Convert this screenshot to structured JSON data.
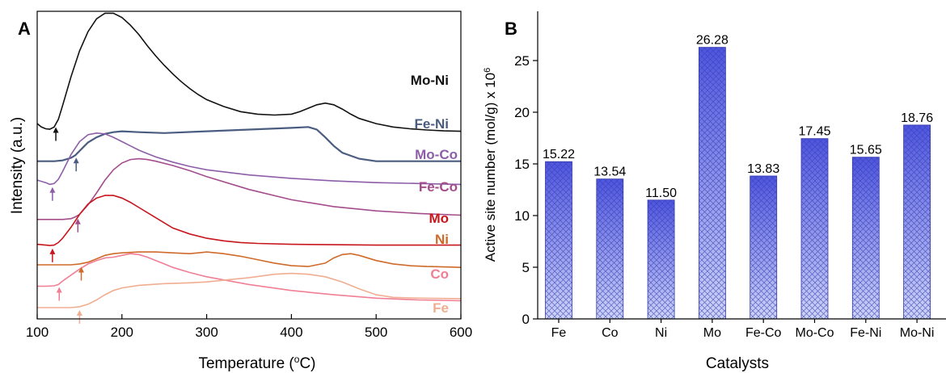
{
  "panels": {
    "a": "A",
    "b": "B"
  },
  "chart_data": [
    {
      "type": "line",
      "panel": "A",
      "xlabel": "Temperature (°C)",
      "xlabel_parts": {
        "main": "Temperature (",
        "sup": "o",
        "tail": "C)"
      },
      "ylabel": "Intensity (a.u.)",
      "xlim": [
        100,
        600
      ],
      "xticks": [
        100,
        200,
        300,
        400,
        500,
        600
      ],
      "yticks_shown": false,
      "series": [
        {
          "name": "Mo-Ni",
          "color": "#111111",
          "arrow_x": 122,
          "x": [
            100,
            105,
            110,
            115,
            120,
            125,
            130,
            140,
            150,
            160,
            170,
            180,
            190,
            200,
            210,
            220,
            230,
            240,
            250,
            260,
            270,
            280,
            290,
            300,
            320,
            340,
            360,
            380,
            400,
            410,
            420,
            430,
            440,
            450,
            460,
            470,
            480,
            500,
            520,
            540,
            560,
            580,
            600
          ],
          "y": [
            4.3,
            4.22,
            4.18,
            4.17,
            4.22,
            4.4,
            4.72,
            5.4,
            6.0,
            6.45,
            6.75,
            6.88,
            6.88,
            6.78,
            6.6,
            6.38,
            6.12,
            5.88,
            5.66,
            5.46,
            5.28,
            5.12,
            4.98,
            4.86,
            4.7,
            4.58,
            4.52,
            4.5,
            4.52,
            4.58,
            4.66,
            4.74,
            4.78,
            4.74,
            4.64,
            4.52,
            4.42,
            4.3,
            4.22,
            4.18,
            4.15,
            4.13,
            4.12
          ]
        },
        {
          "name": "Fe-Ni",
          "color": "#4a5d80",
          "arrow_x": 146,
          "x": [
            100,
            110,
            120,
            130,
            140,
            145,
            150,
            155,
            160,
            170,
            180,
            190,
            200,
            220,
            250,
            300,
            350,
            400,
            420,
            430,
            440,
            450,
            460,
            480,
            500,
            550,
            600
          ],
          "y": [
            3.42,
            3.42,
            3.42,
            3.44,
            3.5,
            3.56,
            3.66,
            3.76,
            3.86,
            3.98,
            4.06,
            4.1,
            4.12,
            4.1,
            4.08,
            4.12,
            4.16,
            4.2,
            4.22,
            4.16,
            3.98,
            3.78,
            3.62,
            3.48,
            3.42,
            3.42,
            3.42
          ]
        },
        {
          "name": "Mo-Co",
          "color": "#8d5ea8",
          "arrow_x": 118,
          "x": [
            100,
            110,
            115,
            120,
            125,
            130,
            140,
            150,
            160,
            170,
            180,
            190,
            200,
            210,
            220,
            230,
            240,
            260,
            280,
            300,
            350,
            400,
            450,
            500,
            550,
            600
          ],
          "y": [
            2.98,
            2.92,
            2.88,
            2.9,
            3.0,
            3.18,
            3.58,
            3.88,
            4.04,
            4.08,
            4.06,
            3.98,
            3.88,
            3.78,
            3.68,
            3.6,
            3.52,
            3.4,
            3.3,
            3.22,
            3.1,
            3.02,
            2.96,
            2.92,
            2.9,
            2.88
          ]
        },
        {
          "name": "Fe-Co",
          "color": "#a34d8c",
          "arrow_x": 148,
          "x": [
            100,
            110,
            120,
            130,
            140,
            145,
            150,
            160,
            170,
            180,
            190,
            200,
            210,
            220,
            230,
            240,
            260,
            280,
            300,
            350,
            400,
            450,
            500,
            550,
            600
          ],
          "y": [
            2.06,
            2.06,
            2.06,
            2.06,
            2.08,
            2.12,
            2.18,
            2.4,
            2.68,
            2.98,
            3.22,
            3.38,
            3.46,
            3.48,
            3.46,
            3.42,
            3.32,
            3.2,
            3.06,
            2.76,
            2.52,
            2.36,
            2.26,
            2.2,
            2.16
          ]
        },
        {
          "name": "Mo",
          "color": "#c8161d",
          "arrow_x": 118,
          "x": [
            100,
            110,
            115,
            120,
            125,
            130,
            140,
            150,
            160,
            170,
            180,
            190,
            200,
            210,
            220,
            230,
            240,
            250,
            260,
            280,
            300,
            320,
            340,
            360,
            400,
            450,
            500,
            550,
            600
          ],
          "y": [
            1.48,
            1.46,
            1.45,
            1.46,
            1.52,
            1.62,
            1.88,
            2.18,
            2.42,
            2.56,
            2.62,
            2.62,
            2.56,
            2.46,
            2.34,
            2.22,
            2.1,
            1.98,
            1.86,
            1.72,
            1.62,
            1.56,
            1.52,
            1.5,
            1.48,
            1.47,
            1.46,
            1.46,
            1.46
          ]
        },
        {
          "name": "Ni",
          "color": "#d06a2a",
          "arrow_x": 152,
          "x": [
            100,
            120,
            140,
            150,
            160,
            170,
            180,
            190,
            200,
            220,
            240,
            260,
            280,
            290,
            300,
            320,
            340,
            360,
            380,
            400,
            420,
            440,
            450,
            460,
            470,
            480,
            500,
            520,
            540,
            560,
            580,
            600
          ],
          "y": [
            1.0,
            1.0,
            1.0,
            1.02,
            1.06,
            1.14,
            1.22,
            1.26,
            1.28,
            1.3,
            1.3,
            1.28,
            1.26,
            1.28,
            1.3,
            1.26,
            1.2,
            1.12,
            1.04,
            0.98,
            0.96,
            1.04,
            1.16,
            1.24,
            1.26,
            1.22,
            1.1,
            1.02,
            0.98,
            0.96,
            0.95,
            0.94
          ]
        },
        {
          "name": "Co",
          "color": "#f07f95",
          "arrow_x": 126,
          "x": [
            100,
            110,
            120,
            125,
            130,
            140,
            150,
            160,
            170,
            180,
            190,
            200,
            210,
            220,
            230,
            240,
            250,
            260,
            280,
            300,
            350,
            400,
            450,
            500,
            550,
            600
          ],
          "y": [
            0.5,
            0.5,
            0.51,
            0.54,
            0.62,
            0.76,
            0.9,
            1.02,
            1.1,
            1.16,
            1.18,
            1.22,
            1.26,
            1.24,
            1.18,
            1.1,
            1.02,
            0.94,
            0.82,
            0.72,
            0.54,
            0.4,
            0.3,
            0.22,
            0.18,
            0.16
          ]
        },
        {
          "name": "Fe",
          "color": "#f1ad91",
          "arrow_x": 150,
          "x": [
            100,
            120,
            140,
            150,
            160,
            170,
            180,
            190,
            200,
            220,
            250,
            280,
            300,
            320,
            350,
            380,
            400,
            420,
            440,
            460,
            480,
            500,
            520,
            550,
            600
          ],
          "y": [
            0.0,
            0.0,
            0.0,
            0.02,
            0.08,
            0.18,
            0.3,
            0.4,
            0.46,
            0.52,
            0.56,
            0.58,
            0.6,
            0.64,
            0.7,
            0.78,
            0.8,
            0.78,
            0.72,
            0.6,
            0.44,
            0.3,
            0.24,
            0.22,
            0.21
          ]
        }
      ]
    },
    {
      "type": "bar",
      "panel": "B",
      "xlabel": "Catalysts",
      "ylabel": "Active site number (mol/g) x 10",
      "ylabel_sup": "6",
      "ylim": [
        0,
        29
      ],
      "yticks": [
        0,
        5,
        10,
        15,
        20,
        25
      ],
      "categories": [
        "Fe",
        "Co",
        "Ni",
        "Mo",
        "Fe-Co",
        "Mo-Co",
        "Fe-Ni",
        "Mo-Ni"
      ],
      "values": [
        15.22,
        13.54,
        11.5,
        26.28,
        13.83,
        17.45,
        15.65,
        18.76
      ],
      "value_labels": [
        "15.22",
        "13.54",
        "11.50",
        "26.28",
        "13.83",
        "17.45",
        "15.65",
        "18.76"
      ],
      "bar_fill": "crosshatch blue gradient",
      "colors": {
        "top": "#4d55e0",
        "bottom": "#cdd4f8",
        "hatch": "#3a3fb0"
      }
    }
  ]
}
